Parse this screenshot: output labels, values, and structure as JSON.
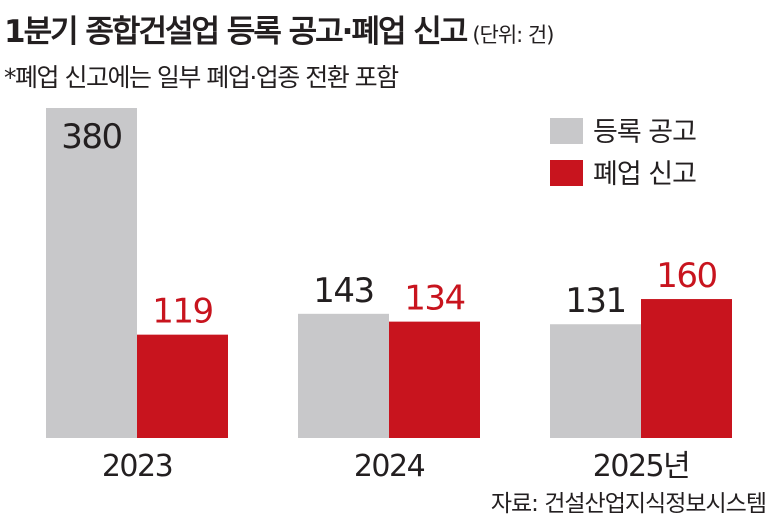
{
  "header": {
    "title": "1분기 종합건설업 등록 공고·폐업 신고",
    "unit": "(단위: 건)",
    "note": "*폐업 신고에는 일부 폐업·업종 전환 포함"
  },
  "source": "자료: 건설산업지식정보시스템",
  "colors": {
    "registration": "#c8c8ca",
    "closure": "#c8141e",
    "text": "#231f20"
  },
  "chart_data": {
    "type": "bar",
    "categories": [
      "2023",
      "2024",
      "2025년"
    ],
    "series": [
      {
        "name": "등록 공고",
        "values": [
          380,
          143,
          131
        ]
      },
      {
        "name": "폐업 신고",
        "values": [
          119,
          134,
          160
        ]
      }
    ],
    "ylim": [
      0,
      380
    ],
    "grid": false,
    "legend": "top-right"
  }
}
